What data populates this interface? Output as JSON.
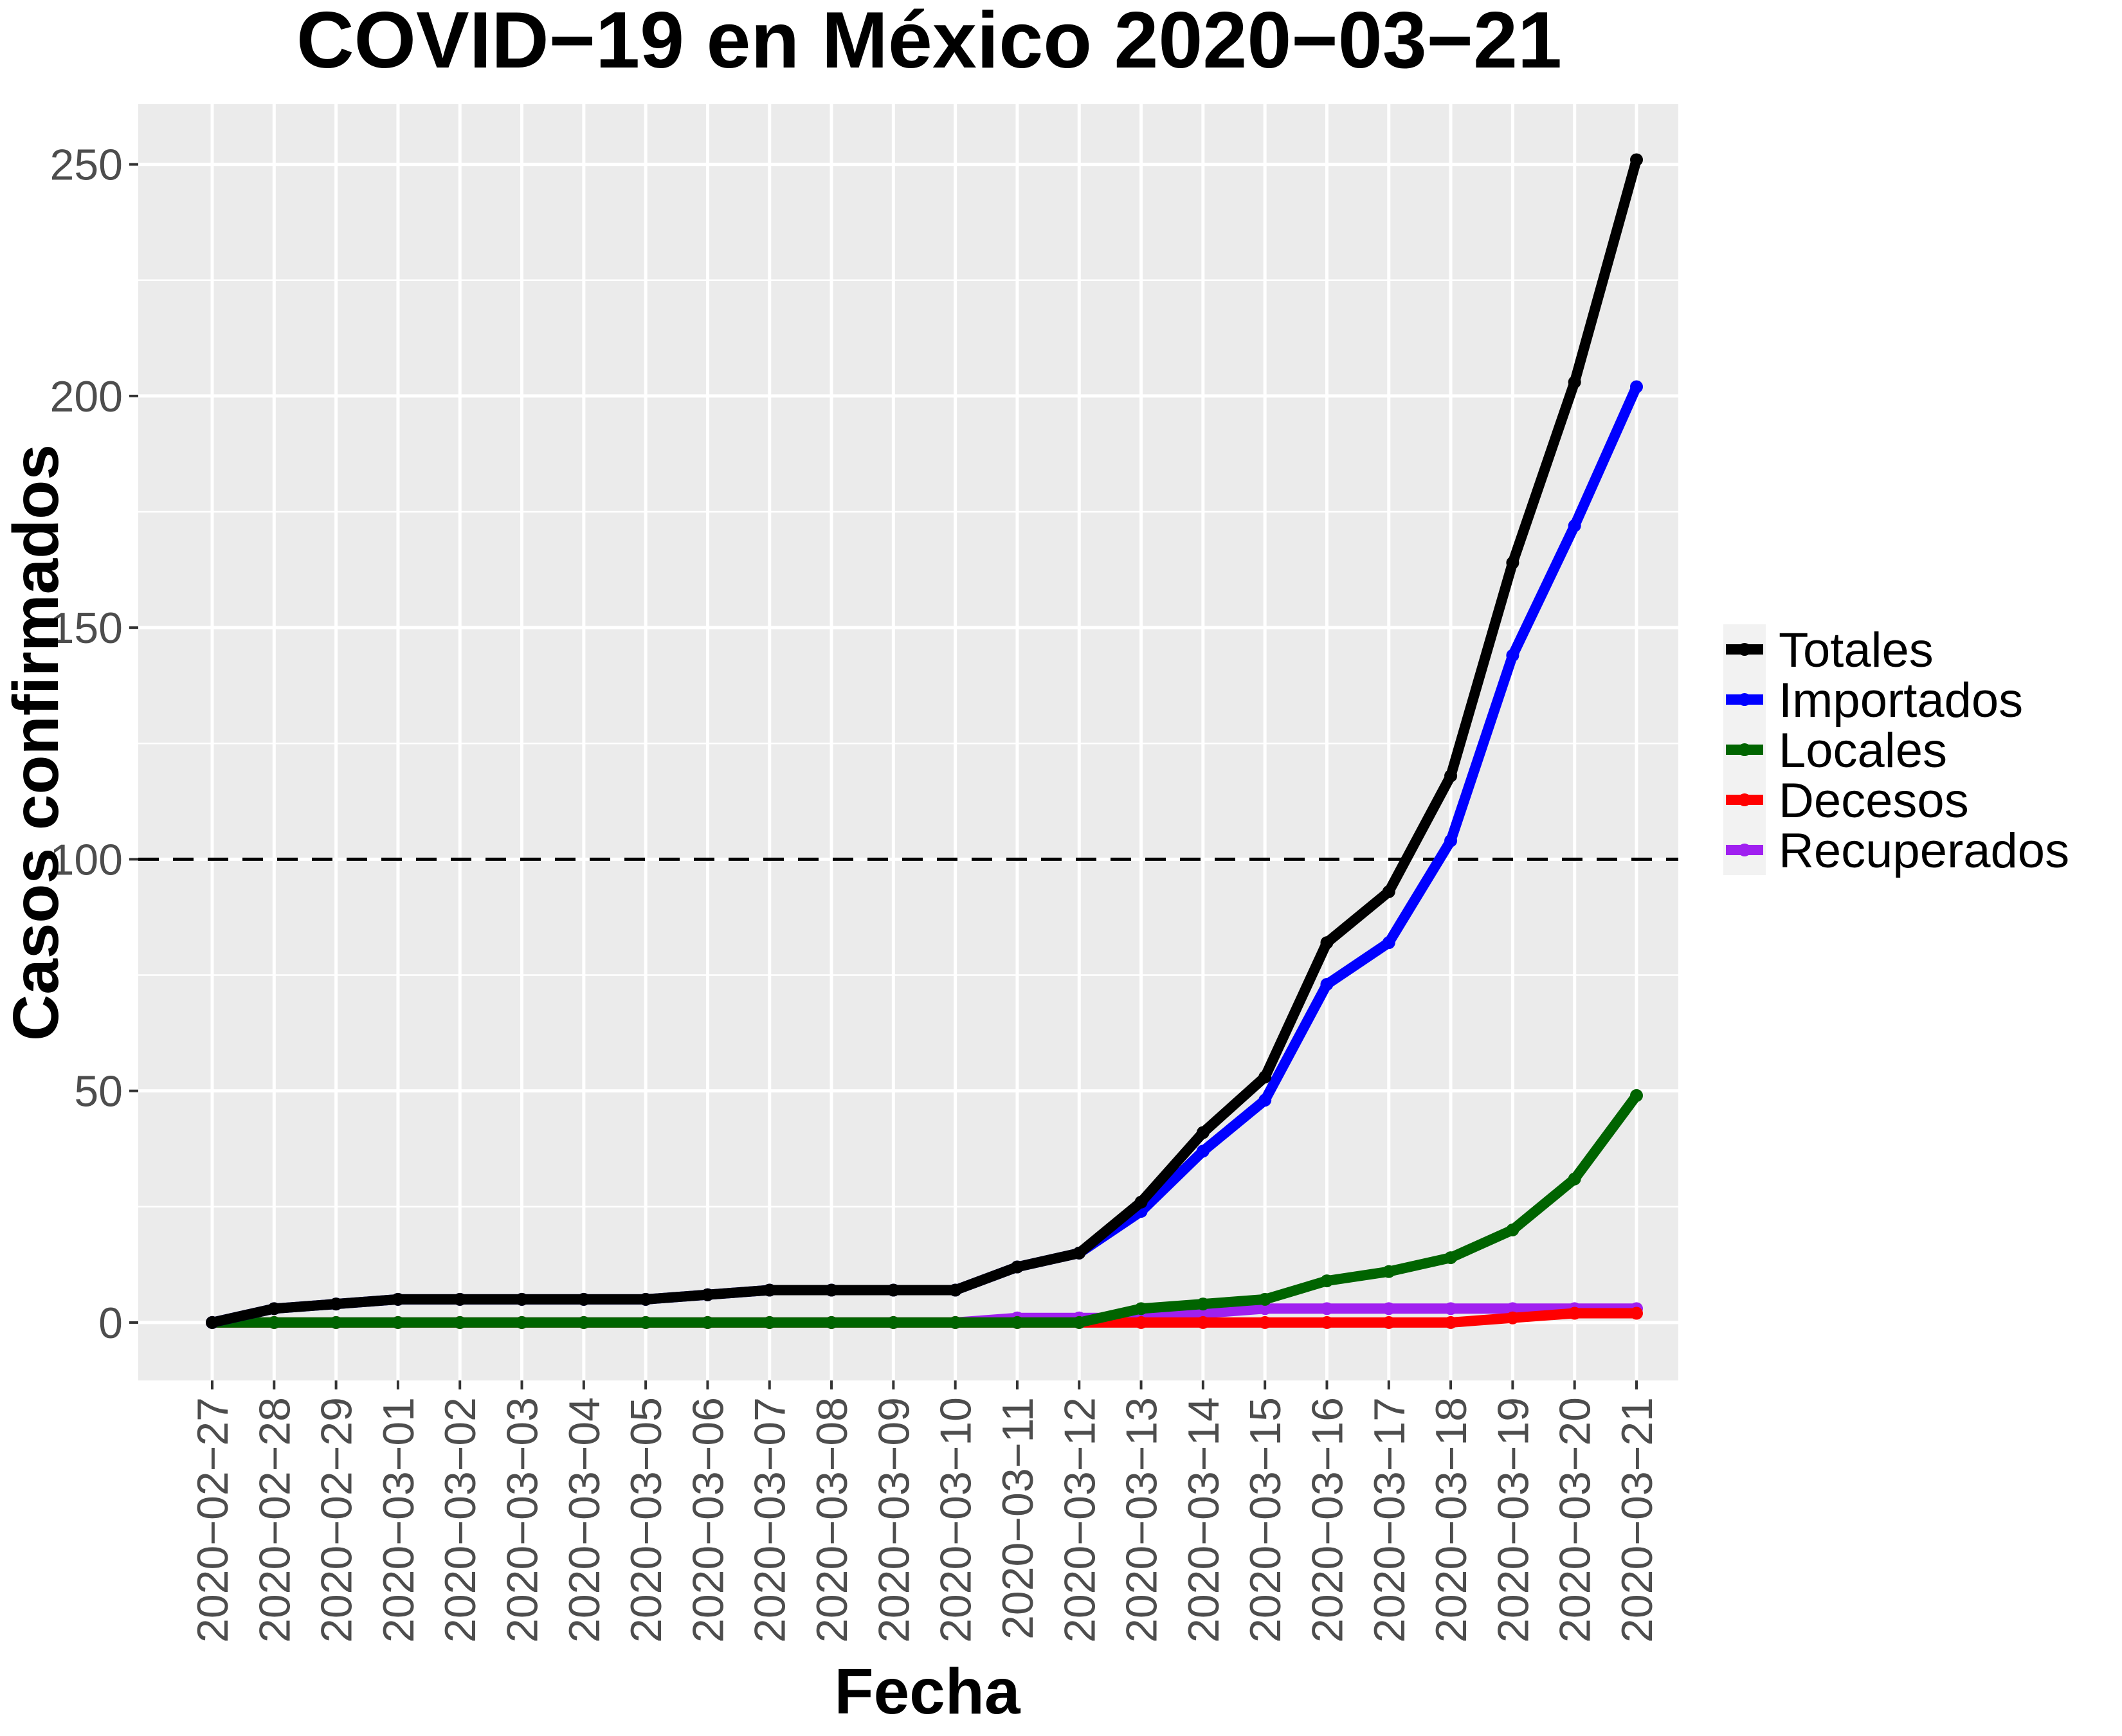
{
  "chart_data": {
    "type": "line",
    "title": "COVID−19 en México 2020−03−21",
    "xlabel": "Fecha",
    "ylabel": "Casos confirmados",
    "x": [
      "2020−02−27",
      "2020−02−28",
      "2020−02−29",
      "2020−03−01",
      "2020−03−02",
      "2020−03−03",
      "2020−03−04",
      "2020−03−05",
      "2020−03−06",
      "2020−03−07",
      "2020−03−08",
      "2020−03−09",
      "2020−03−10",
      "2020−03−11",
      "2020−03−12",
      "2020−03−13",
      "2020−03−14",
      "2020−03−15",
      "2020−03−16",
      "2020−03−17",
      "2020−03−18",
      "2020−03−19",
      "2020−03−20",
      "2020−03−21"
    ],
    "ylim": [
      -12.5,
      263
    ],
    "yticks": [
      0,
      50,
      100,
      150,
      200,
      250
    ],
    "reference_line": {
      "y": 100,
      "style": "dashed",
      "color": "#000000"
    },
    "grid": true,
    "legend_position": "right",
    "series": [
      {
        "name": "Totales",
        "color": "#000000",
        "values": [
          0,
          3,
          4,
          5,
          5,
          5,
          5,
          5,
          6,
          7,
          7,
          7,
          7,
          12,
          15,
          26,
          41,
          53,
          82,
          93,
          118,
          164,
          203,
          251
        ]
      },
      {
        "name": "Importados",
        "color": "#0000ff",
        "values": [
          0,
          3,
          4,
          5,
          5,
          5,
          5,
          5,
          6,
          7,
          7,
          7,
          7,
          12,
          15,
          24,
          37,
          48,
          73,
          82,
          104,
          144,
          172,
          202
        ]
      },
      {
        "name": "Locales",
        "color": "#006400",
        "values": [
          0,
          0,
          0,
          0,
          0,
          0,
          0,
          0,
          0,
          0,
          0,
          0,
          0,
          0,
          0,
          3,
          4,
          5,
          9,
          11,
          14,
          20,
          31,
          49
        ]
      },
      {
        "name": "Decesos",
        "color": "#ff0000",
        "values": [
          0,
          0,
          0,
          0,
          0,
          0,
          0,
          0,
          0,
          0,
          0,
          0,
          0,
          0,
          0,
          0,
          0,
          0,
          0,
          0,
          0,
          1,
          2,
          2
        ]
      },
      {
        "name": "Recuperados",
        "color": "#a020f0",
        "values": [
          0,
          0,
          0,
          0,
          0,
          0,
          0,
          0,
          0,
          0,
          0,
          0,
          0,
          1,
          1,
          1,
          2,
          3,
          3,
          3,
          3,
          3,
          3,
          3
        ]
      }
    ]
  }
}
